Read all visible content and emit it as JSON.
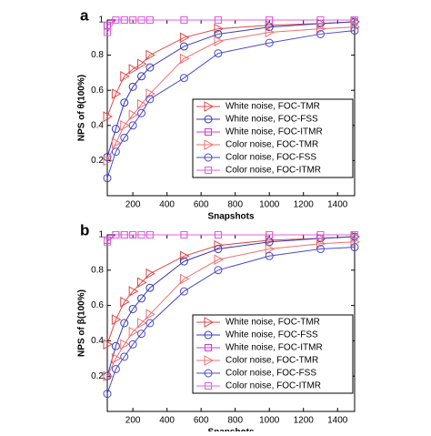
{
  "chart_data": [
    {
      "type": "line",
      "panel_label": "a",
      "xlabel": "Snapshots",
      "ylabel": "NPS of θ(100%)",
      "x": [
        50,
        100,
        150,
        200,
        250,
        300,
        500,
        700,
        1000,
        1300,
        1500
      ],
      "xlim": [
        50,
        1500
      ],
      "xticks": [
        200,
        400,
        600,
        800,
        1000,
        1200,
        1400
      ],
      "ylim": [
        0,
        1
      ],
      "yticks": [
        0.2,
        0.4,
        0.6,
        0.8,
        1
      ],
      "legend": "lower right",
      "series": [
        {
          "name": "White noise, FOC-TMR",
          "color": "#e04848",
          "marker": "triangle-right",
          "values": [
            0.45,
            0.58,
            0.68,
            0.72,
            0.75,
            0.8,
            0.9,
            0.95,
            0.97,
            0.98,
            0.99
          ]
        },
        {
          "name": "White noise, FOC-FSS",
          "color": "#3838b8",
          "marker": "circle",
          "values": [
            0.22,
            0.38,
            0.53,
            0.62,
            0.68,
            0.73,
            0.85,
            0.92,
            0.96,
            0.98,
            0.99
          ]
        },
        {
          "name": "White noise, FOC-ITMR",
          "color": "#d838d8",
          "marker": "square",
          "values": [
            0.97,
            1,
            1,
            1,
            1,
            1,
            1,
            1,
            1,
            1,
            1
          ]
        },
        {
          "name": "Color noise, FOC-TMR",
          "color": "#f07070",
          "marker": "triangle-right",
          "values": [
            0.2,
            0.3,
            0.4,
            0.46,
            0.52,
            0.58,
            0.78,
            0.88,
            0.93,
            0.95,
            0.96
          ]
        },
        {
          "name": "Color noise, FOC-FSS",
          "color": "#4a4ad0",
          "marker": "circle",
          "values": [
            0.1,
            0.25,
            0.33,
            0.4,
            0.47,
            0.55,
            0.67,
            0.81,
            0.87,
            0.92,
            0.94
          ]
        },
        {
          "name": "Color noise, FOC-ITMR",
          "color": "#e060e0",
          "marker": "square",
          "values": [
            0.93,
            1,
            1,
            1,
            1,
            1,
            1,
            1,
            1,
            1,
            1
          ]
        }
      ]
    },
    {
      "type": "line",
      "panel_label": "b",
      "xlabel": "Snapshots",
      "ylabel": "NPS of β(100%)",
      "x": [
        50,
        100,
        150,
        200,
        250,
        300,
        500,
        700,
        1000,
        1300,
        1500
      ],
      "xlim": [
        50,
        1500
      ],
      "xticks": [
        200,
        400,
        600,
        800,
        1000,
        1200,
        1400
      ],
      "ylim": [
        0,
        1
      ],
      "yticks": [
        0.2,
        0.4,
        0.6,
        0.8,
        1
      ],
      "legend": "lower right",
      "series": [
        {
          "name": "White noise, FOC-TMR",
          "color": "#e04848",
          "marker": "triangle-right",
          "values": [
            0.38,
            0.52,
            0.62,
            0.68,
            0.73,
            0.78,
            0.88,
            0.94,
            0.97,
            0.98,
            0.99
          ]
        },
        {
          "name": "White noise, FOC-FSS",
          "color": "#3838b8",
          "marker": "circle",
          "values": [
            0.2,
            0.37,
            0.5,
            0.58,
            0.64,
            0.7,
            0.85,
            0.92,
            0.96,
            0.98,
            0.99
          ]
        },
        {
          "name": "White noise, FOC-ITMR",
          "color": "#d838d8",
          "marker": "square",
          "values": [
            0.97,
            1,
            1,
            1,
            1,
            1,
            1,
            1,
            1,
            1,
            1
          ]
        },
        {
          "name": "Color noise, FOC-TMR",
          "color": "#f07070",
          "marker": "triangle-right",
          "values": [
            0.2,
            0.3,
            0.38,
            0.45,
            0.5,
            0.55,
            0.75,
            0.86,
            0.92,
            0.95,
            0.96
          ]
        },
        {
          "name": "Color noise, FOC-FSS",
          "color": "#4a4ad0",
          "marker": "circle",
          "values": [
            0.1,
            0.24,
            0.31,
            0.38,
            0.44,
            0.5,
            0.68,
            0.8,
            0.88,
            0.92,
            0.93
          ]
        },
        {
          "name": "Color noise, FOC-ITMR",
          "color": "#e060e0",
          "marker": "square",
          "values": [
            0.96,
            1,
            1,
            1,
            1,
            1,
            1,
            1,
            1,
            1,
            1
          ]
        }
      ]
    }
  ]
}
